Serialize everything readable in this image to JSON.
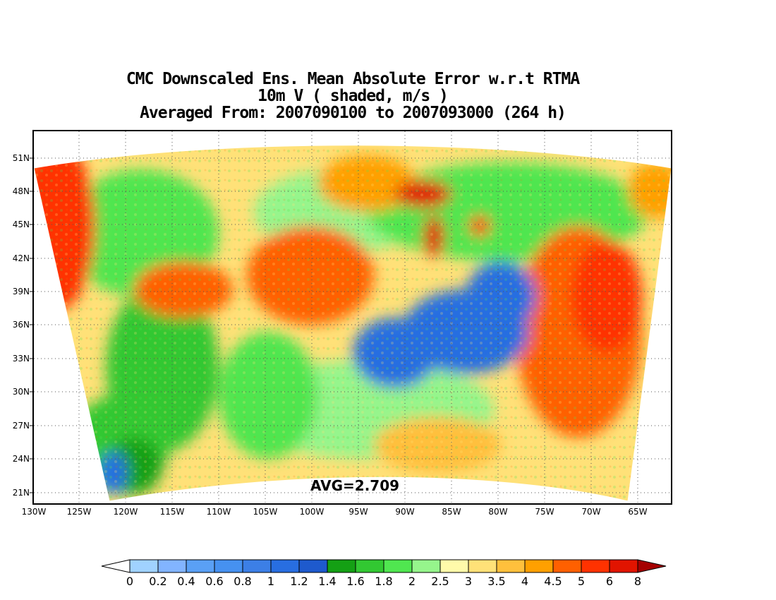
{
  "title": {
    "line1": "CMC Downscaled Ens. Mean Absolute Error w.r.t RTMA",
    "line2": "10m V ( shaded, m/s )",
    "line3": "Averaged From: 2007090100 to 2007093000 (264 h)"
  },
  "avg_label": "AVG=2.709",
  "lat_labels": [
    "51N",
    "48N",
    "45N",
    "42N",
    "39N",
    "36N",
    "33N",
    "30N",
    "27N",
    "24N",
    "21N"
  ],
  "lon_labels": [
    "130W",
    "125W",
    "120W",
    "115W",
    "110W",
    "105W",
    "100W",
    "95W",
    "90W",
    "85W",
    "80W",
    "75W",
    "70W",
    "65W"
  ],
  "colorbar": {
    "labels": [
      "0",
      "0.2",
      "0.4",
      "0.6",
      "0.8",
      "1",
      "1.2",
      "1.4",
      "1.6",
      "1.8",
      "2",
      "2.5",
      "3",
      "3.5",
      "4",
      "4.5",
      "5",
      "6",
      "8"
    ],
    "colors": [
      "#a0d2ff",
      "#82b4ff",
      "#5aa0f5",
      "#4691f0",
      "#3c7fe6",
      "#286ee1",
      "#1e5acd",
      "#14a014",
      "#32c832",
      "#50e650",
      "#96f58c",
      "#fffaaa",
      "#ffe178",
      "#ffc03c",
      "#ffa000",
      "#ff6000",
      "#ff3200",
      "#e11400",
      "#a50000"
    ]
  },
  "map": {
    "grid": "dotted",
    "projection": "lat-lon",
    "ocean_high_error_color": "#ff6000",
    "land_low_error_color": "#286ee1"
  }
}
